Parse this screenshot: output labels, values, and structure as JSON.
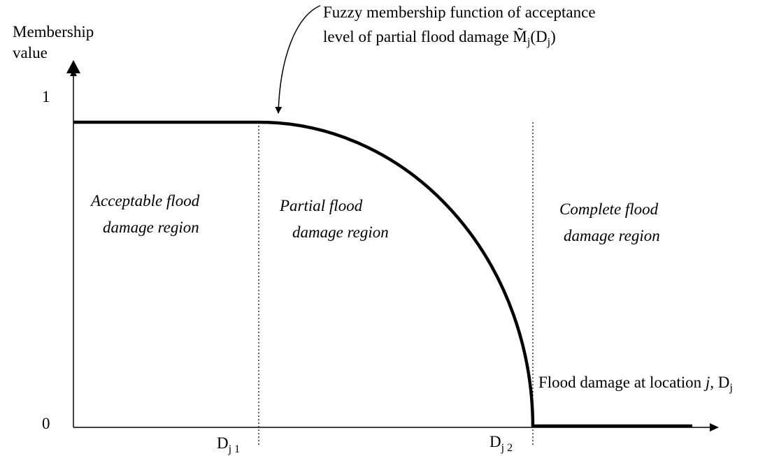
{
  "axis": {
    "y_label": [
      "Membership",
      "value"
    ],
    "y_ticks": [
      1,
      0
    ],
    "x_label": {
      "text": "Flood damage at location ",
      "var": "j",
      "sep": ", ",
      "symbol": "D",
      "sub": "j"
    }
  },
  "annotation": {
    "lines": [
      "Fuzzy membership function of acceptance",
      "level of partial flood damage "
    ],
    "symbol": "M̃",
    "sub": "j",
    "arg_open": "(D",
    "arg_sub": "j",
    "arg_close": ")"
  },
  "regions": [
    [
      "Acceptable flood",
      "damage region"
    ],
    [
      "Partial flood",
      "damage region"
    ],
    [
      "Complete flood",
      "damage region"
    ]
  ],
  "thresholds": [
    {
      "symbol": "D",
      "sub": "j 1"
    },
    {
      "symbol": "D",
      "sub": "j 2"
    }
  ]
}
